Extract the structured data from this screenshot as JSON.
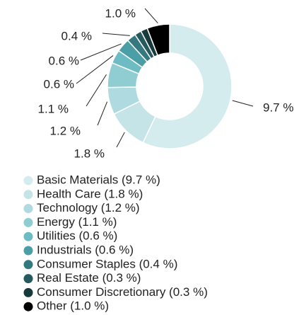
{
  "chart_data": {
    "type": "donut",
    "categories": [
      "Basic Materials (9.7 %)",
      "Health Care (1.8 %)",
      "Technology (1.2 %)",
      "Energy (1.1 %)",
      "Utilities (0.6 %)",
      "Industrials (0.6 %)",
      "Consumer Staples (0.4 %)",
      "Real Estate (0.3 %)",
      "Consumer Discretionary (0.3 %)",
      "Other (1.0 %)"
    ],
    "values": [
      9.7,
      1.8,
      1.2,
      1.1,
      0.6,
      0.6,
      0.4,
      0.3,
      0.3,
      1.0
    ],
    "value_labels": [
      "9.7 %",
      "1.8 %",
      "1.2 %",
      "1.1 %",
      "0.6 %",
      "0.6 %",
      "0.4 %",
      null,
      null,
      "1.0 %"
    ],
    "colors": [
      "#d5ecef",
      "#c4e4e8",
      "#afdadf",
      "#8fcdd3",
      "#6dbcc4",
      "#4b9ea6",
      "#357980",
      "#275a5f",
      "#193a3d",
      "#000000"
    ]
  }
}
